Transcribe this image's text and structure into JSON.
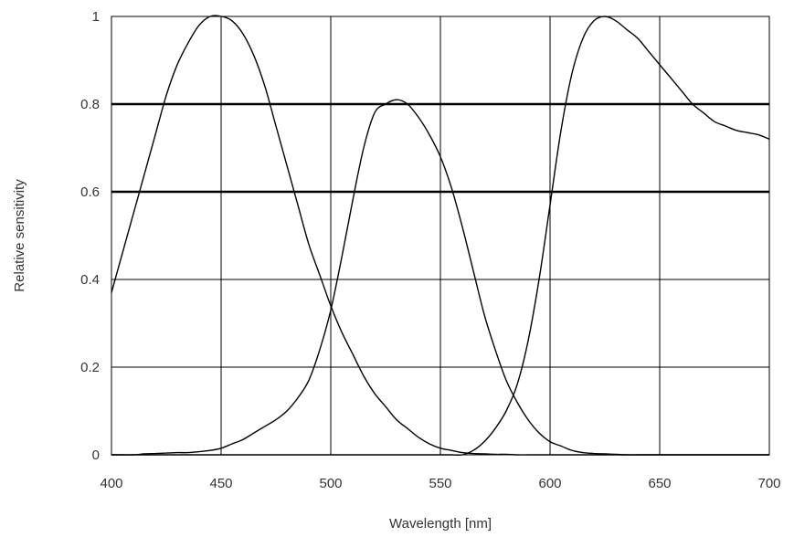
{
  "chart_data": {
    "type": "line",
    "title": "",
    "xlabel": "Wavelength [nm]",
    "ylabel": "Relative sensitivity",
    "xlim": [
      400,
      700
    ],
    "ylim": [
      0,
      1
    ],
    "xticks": [
      400,
      450,
      500,
      550,
      600,
      650,
      700
    ],
    "yticks": [
      0,
      0.2,
      0.4,
      0.6,
      0.8,
      1
    ],
    "xtick_labels": [
      "400",
      "450",
      "500",
      "550",
      "600",
      "650",
      "700"
    ],
    "ytick_labels": [
      "0",
      "0.2",
      "0.4",
      "0.6",
      "0.8",
      "1"
    ],
    "grid": true,
    "legend": "none",
    "reference_lines": [
      0.6,
      0.8
    ],
    "series": [
      {
        "x": [
          400,
          405,
          410,
          415,
          420,
          425,
          430,
          435,
          440,
          445,
          450,
          455,
          460,
          465,
          470,
          475,
          480,
          485,
          490,
          495,
          500,
          505,
          510,
          515,
          520,
          525,
          530,
          535,
          540,
          545,
          550,
          555,
          560,
          565,
          570,
          575,
          580,
          585,
          590,
          595,
          600,
          605,
          610,
          615,
          620,
          625,
          630,
          635,
          640,
          645,
          650,
          655,
          660,
          665,
          670,
          675,
          680,
          685,
          690,
          695,
          700
        ],
        "y": [
          0.37,
          0.46,
          0.55,
          0.64,
          0.73,
          0.82,
          0.89,
          0.94,
          0.98,
          1.0,
          1.0,
          0.99,
          0.96,
          0.91,
          0.84,
          0.75,
          0.66,
          0.57,
          0.48,
          0.41,
          0.34,
          0.28,
          0.23,
          0.18,
          0.14,
          0.11,
          0.08,
          0.06,
          0.04,
          0.025,
          0.015,
          0.01,
          0.005,
          0.003,
          0.002,
          0.001,
          0.001,
          0.0,
          0.0,
          0.0,
          0.0,
          0.0,
          0.0,
          0.0,
          0.0,
          0.0,
          0.0,
          0.0,
          0.0,
          0.0,
          0.0,
          0.0,
          0.0,
          0.0,
          0.0,
          0.0,
          0.0,
          0.0,
          0.0,
          0.0,
          0.0
        ]
      },
      {
        "x": [
          400,
          405,
          410,
          415,
          420,
          425,
          430,
          435,
          440,
          445,
          450,
          455,
          460,
          465,
          470,
          475,
          480,
          485,
          490,
          495,
          500,
          505,
          510,
          515,
          520,
          525,
          530,
          535,
          540,
          545,
          550,
          555,
          560,
          565,
          570,
          575,
          580,
          585,
          590,
          595,
          600,
          605,
          610,
          615,
          620,
          625,
          630,
          635,
          640,
          645,
          650,
          655,
          660,
          665,
          670,
          675,
          680,
          685,
          690,
          695,
          700
        ],
        "y": [
          0.0,
          0.0,
          0.0,
          0.002,
          0.003,
          0.004,
          0.005,
          0.005,
          0.007,
          0.01,
          0.015,
          0.025,
          0.035,
          0.05,
          0.065,
          0.08,
          0.1,
          0.13,
          0.17,
          0.24,
          0.33,
          0.45,
          0.58,
          0.7,
          0.78,
          0.8,
          0.81,
          0.8,
          0.77,
          0.73,
          0.68,
          0.61,
          0.52,
          0.42,
          0.32,
          0.24,
          0.17,
          0.12,
          0.08,
          0.05,
          0.03,
          0.02,
          0.01,
          0.005,
          0.003,
          0.002,
          0.001,
          0.0,
          0.0,
          0.0,
          0.0,
          0.0,
          0.0,
          0.0,
          0.0,
          0.0,
          0.0,
          0.0,
          0.0,
          0.0,
          0.0
        ]
      },
      {
        "x": [
          400,
          405,
          410,
          415,
          420,
          425,
          430,
          435,
          440,
          445,
          450,
          455,
          460,
          465,
          470,
          475,
          480,
          485,
          490,
          495,
          500,
          505,
          510,
          515,
          520,
          525,
          530,
          535,
          540,
          545,
          550,
          555,
          560,
          565,
          570,
          575,
          580,
          585,
          590,
          595,
          600,
          605,
          610,
          615,
          620,
          625,
          630,
          635,
          640,
          645,
          650,
          655,
          660,
          665,
          670,
          675,
          680,
          685,
          690,
          695,
          700
        ],
        "y": [
          0.0,
          0.0,
          0.0,
          0.0,
          0.0,
          0.0,
          0.0,
          0.0,
          0.0,
          0.0,
          0.0,
          0.0,
          0.0,
          0.0,
          0.0,
          0.0,
          0.0,
          0.0,
          0.0,
          0.0,
          0.0,
          0.0,
          0.0,
          0.0,
          0.0,
          0.0,
          0.0,
          0.0,
          0.0,
          0.0,
          0.0,
          0.0,
          0.0,
          0.01,
          0.03,
          0.06,
          0.1,
          0.16,
          0.26,
          0.4,
          0.57,
          0.74,
          0.87,
          0.95,
          0.99,
          1.0,
          0.99,
          0.97,
          0.95,
          0.92,
          0.89,
          0.86,
          0.83,
          0.8,
          0.78,
          0.76,
          0.75,
          0.74,
          0.735,
          0.73,
          0.72
        ]
      }
    ]
  }
}
